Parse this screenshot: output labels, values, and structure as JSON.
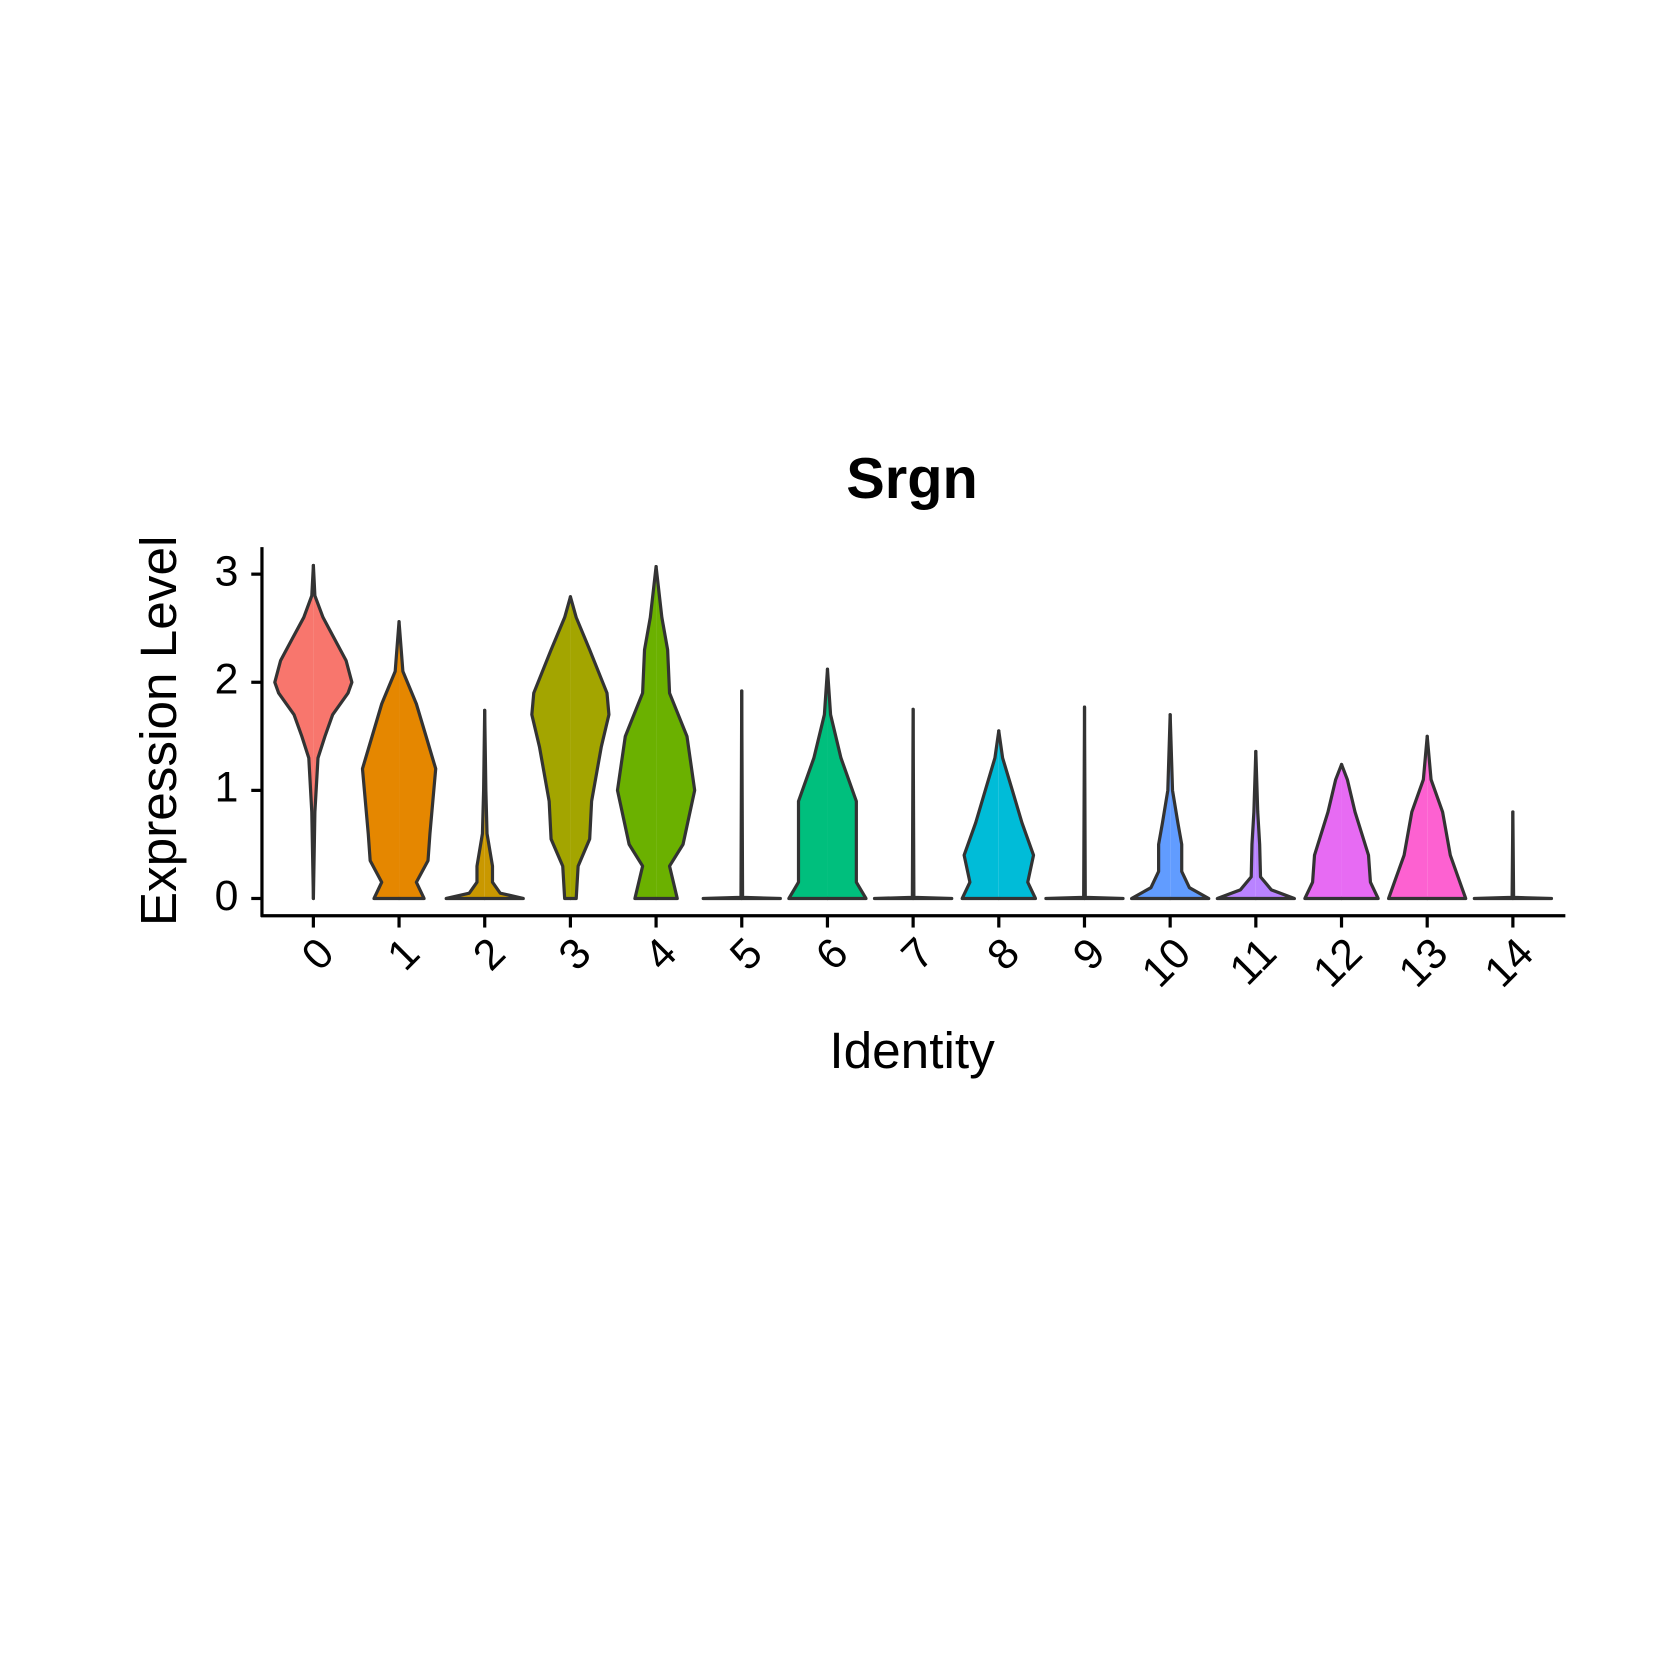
{
  "chart_data": {
    "type": "violin",
    "title": "Srgn",
    "x_label": "Identity",
    "y_label": "Expression Level",
    "categories": [
      "0",
      "1",
      "2",
      "3",
      "4",
      "5",
      "6",
      "7",
      "8",
      "9",
      "10",
      "11",
      "12",
      "13",
      "14"
    ],
    "colors": [
      "#F8766D",
      "#E58700",
      "#C99800",
      "#A3A500",
      "#6BB100",
      "#00BA38",
      "#00BF7D",
      "#00C0AF",
      "#00BCD8",
      "#00B0F6",
      "#619CFF",
      "#B983FF",
      "#E76BF3",
      "#FD61D1",
      "#FF67A4"
    ],
    "violins": [
      {
        "levels": [
          0,
          0.8,
          1.3,
          1.5,
          1.7,
          1.9,
          2.0,
          2.2,
          2.4,
          2.6,
          2.8,
          3.08
        ],
        "widths": [
          0,
          0.04,
          0.12,
          0.3,
          0.5,
          0.9,
          1,
          0.85,
          0.55,
          0.25,
          0.04,
          0
        ]
      },
      {
        "levels": [
          0,
          0,
          0.15,
          0.35,
          0.6,
          1.2,
          1.5,
          1.8,
          2.1,
          2.56
        ],
        "widths": [
          0,
          0.65,
          0.45,
          0.75,
          0.8,
          0.95,
          0.7,
          0.45,
          0.1,
          0
        ]
      },
      {
        "levels": [
          0,
          0,
          0.05,
          0.15,
          0.3,
          0.6,
          1.0,
          1.74
        ],
        "widths": [
          0,
          1,
          0.4,
          0.2,
          0.2,
          0.06,
          0.03,
          0
        ]
      },
      {
        "levels": [
          0,
          0,
          0.3,
          0.55,
          0.9,
          1.4,
          1.7,
          1.9,
          2.3,
          2.6,
          2.79
        ],
        "widths": [
          0,
          0.15,
          0.2,
          0.5,
          0.55,
          0.8,
          1,
          0.95,
          0.5,
          0.15,
          0
        ]
      },
      {
        "levels": [
          0,
          0,
          0.3,
          0.5,
          1.0,
          1.5,
          1.9,
          2.3,
          2.6,
          3.07
        ],
        "widths": [
          0,
          0.55,
          0.35,
          0.7,
          1,
          0.8,
          0.35,
          0.3,
          0.15,
          0
        ]
      },
      {
        "levels": [
          0,
          0,
          0.01,
          1.92
        ],
        "widths": [
          0,
          1,
          0.02,
          0
        ]
      },
      {
        "levels": [
          0,
          0,
          0.15,
          0.4,
          0.9,
          1.3,
          1.7,
          2.12
        ],
        "widths": [
          0,
          1,
          0.75,
          0.75,
          0.75,
          0.35,
          0.08,
          0
        ]
      },
      {
        "levels": [
          0,
          0,
          0.01,
          1.75
        ],
        "widths": [
          0,
          1,
          0.02,
          0
        ]
      },
      {
        "levels": [
          0,
          0,
          0.15,
          0.4,
          0.7,
          1.0,
          1.3,
          1.55
        ],
        "widths": [
          0,
          0.95,
          0.75,
          0.9,
          0.6,
          0.35,
          0.1,
          0
        ]
      },
      {
        "levels": [
          0,
          0,
          0.01,
          1.77
        ],
        "widths": [
          0,
          1,
          0.02,
          0
        ]
      },
      {
        "levels": [
          0,
          0,
          0.1,
          0.25,
          0.5,
          0.7,
          1.0,
          1.7
        ],
        "widths": [
          0,
          1,
          0.5,
          0.3,
          0.3,
          0.2,
          0.06,
          0
        ]
      },
      {
        "levels": [
          0,
          0,
          0.08,
          0.2,
          0.5,
          0.8,
          1.36
        ],
        "widths": [
          0,
          1,
          0.4,
          0.12,
          0.1,
          0.05,
          0
        ]
      },
      {
        "levels": [
          0,
          0,
          0.15,
          0.4,
          0.8,
          1.1,
          1.24
        ],
        "widths": [
          0,
          0.95,
          0.75,
          0.7,
          0.35,
          0.15,
          0
        ]
      },
      {
        "levels": [
          0,
          0,
          0.2,
          0.4,
          0.8,
          1.1,
          1.5
        ],
        "widths": [
          0,
          1,
          0.8,
          0.6,
          0.4,
          0.1,
          0
        ]
      },
      {
        "levels": [
          0,
          0,
          0.01,
          0.8
        ],
        "widths": [
          0,
          1,
          0.02,
          0
        ]
      }
    ],
    "ylim": [
      -0.16,
      3.25
    ],
    "yticks": [
      0,
      1,
      2,
      3
    ]
  }
}
